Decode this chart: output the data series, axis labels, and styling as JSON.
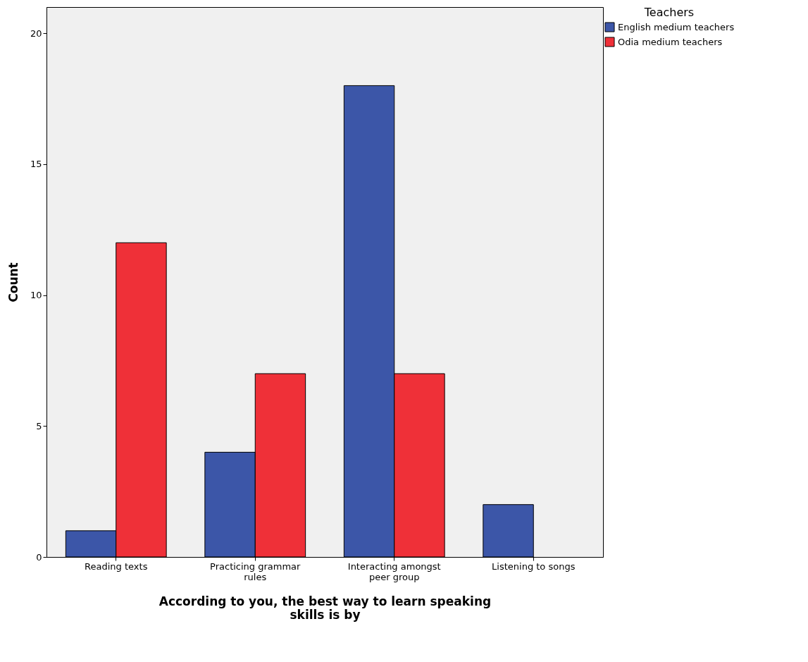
{
  "chart_data": {
    "type": "bar",
    "xlabel": "According to you, the best way to learn speaking skills is by",
    "ylabel": "Count",
    "legend_title": "Teachers",
    "categories": [
      "Reading texts",
      "Practicing grammar rules",
      "Interacting amongst peer group",
      "Listening to songs"
    ],
    "series": [
      {
        "name": "English medium teachers",
        "color": "#3c56a8",
        "values": [
          1,
          4,
          18,
          2
        ]
      },
      {
        "name": "Odia medium teachers",
        "color": "#ef3038",
        "values": [
          12,
          7,
          7,
          null
        ]
      }
    ],
    "ylim": [
      0,
      21
    ],
    "yticks": [
      0,
      5,
      10,
      15,
      20
    ],
    "grid": false,
    "legend": "right"
  }
}
